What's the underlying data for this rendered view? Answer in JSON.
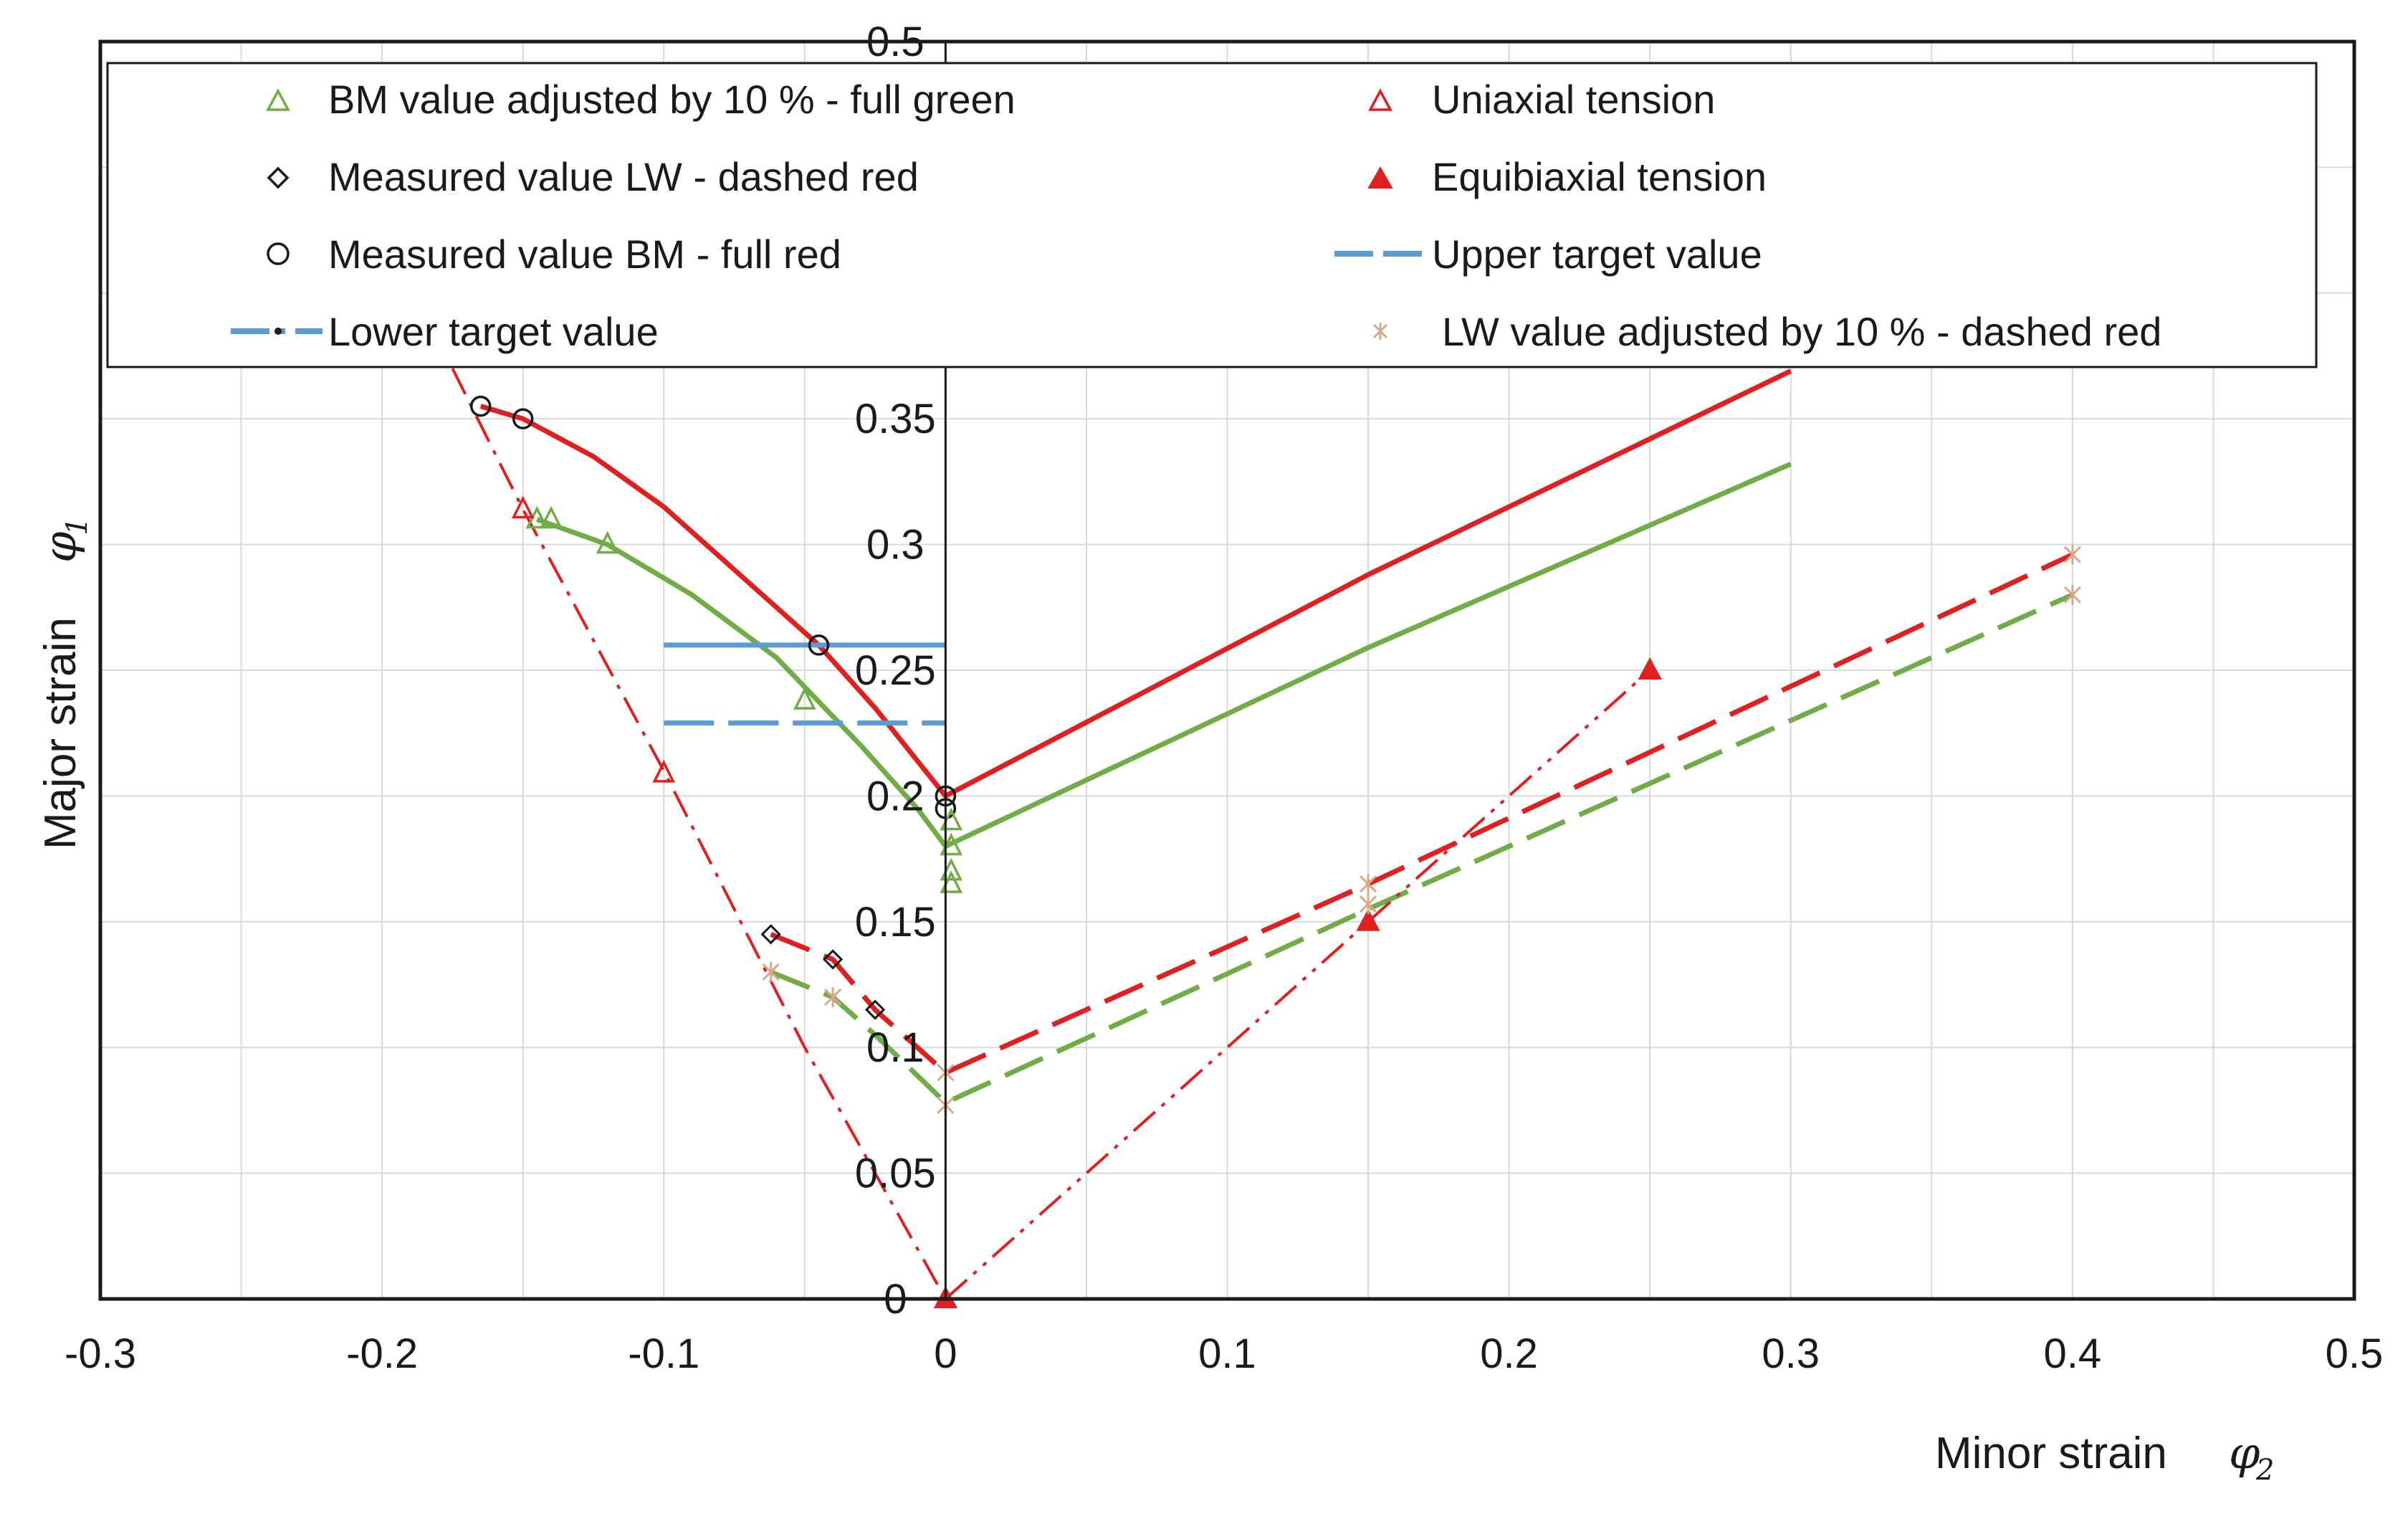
{
  "chart_data": {
    "type": "line",
    "xlabel": "Minor strain",
    "xlabel_symbol": "φ",
    "xlabel_sub": "2",
    "ylabel": "Major strain",
    "ylabel_symbol": "φ",
    "ylabel_sub": "1",
    "xlim": [
      -0.3,
      0.5
    ],
    "ylim": [
      0,
      0.5
    ],
    "x_ticks": [
      "-0.3",
      "-0.2",
      "-0.1",
      "0",
      "0.1",
      "0.2",
      "0.3",
      "0.4",
      "0.5"
    ],
    "y_ticks": [
      "0",
      "0.05",
      "0.1",
      "0.15",
      "0.2",
      "0.25",
      "0.3",
      "0.35",
      "0.5"
    ],
    "grid": true,
    "colors": {
      "red": "#e02020",
      "green": "#70ad47",
      "blue": "#5b9bd5",
      "tan": "#d9a787",
      "dark": "#1a1a1a"
    },
    "legend": [
      {
        "label": "BM value adjusted by 10 %  - full green",
        "marker": "triangle-open-green"
      },
      {
        "label": "Uniaxial tension",
        "marker": "triangle-open-red"
      },
      {
        "label": "Measured value  LW - dashed red",
        "marker": "diamond-open"
      },
      {
        "label": "Equibiaxial tension",
        "marker": "triangle-filled-red"
      },
      {
        "label": "Measured value BM - full red",
        "marker": "circle-open"
      },
      {
        "label": "Upper target value",
        "marker": "line-dashed-blue"
      },
      {
        "label": "Lower target value",
        "marker": "line-dashdot-blue"
      },
      {
        "label": "LW value  adjusted by 10 % - dashed red",
        "marker": "star-tan"
      }
    ],
    "series": [
      {
        "name": "Measured value BM - full red",
        "style": "solid-red",
        "x": [
          -0.165,
          -0.15,
          -0.125,
          -0.1,
          -0.075,
          -0.045,
          -0.025,
          0,
          0.15,
          0.3
        ],
        "y": [
          0.355,
          0.35,
          0.335,
          0.315,
          0.29,
          0.26,
          0.235,
          0.2,
          0.288,
          0.369
        ]
      },
      {
        "name": "BM value adjusted by 10 %  - full green",
        "style": "solid-green",
        "x": [
          -0.145,
          -0.12,
          -0.09,
          -0.06,
          -0.03,
          -0.01,
          0,
          0.15,
          0.3
        ],
        "y": [
          0.31,
          0.3,
          0.28,
          0.255,
          0.22,
          0.195,
          0.18,
          0.259,
          0.332
        ]
      },
      {
        "name": "Measured value  LW - dashed red",
        "style": "dashed-red",
        "x": [
          -0.062,
          -0.04,
          -0.025,
          0,
          0.15,
          0.4
        ],
        "y": [
          0.145,
          0.135,
          0.115,
          0.09,
          0.165,
          0.296
        ]
      },
      {
        "name": "LW value  adjusted by 10 % - dashed red",
        "style": "dashed-green",
        "x": [
          -0.062,
          -0.04,
          -0.025,
          0,
          0.15,
          0.4
        ],
        "y": [
          0.13,
          0.12,
          0.105,
          0.078,
          0.155,
          0.28
        ]
      },
      {
        "name": "Uniaxial tension",
        "style": "dashdot-red",
        "x": [
          -0.175,
          -0.15,
          -0.1,
          -0.05,
          0
        ],
        "y": [
          0.37,
          0.314,
          0.21,
          0.1,
          0
        ]
      },
      {
        "name": "Equibiaxial tension",
        "style": "dashdotdot-red",
        "x": [
          0,
          0.15,
          0.25
        ],
        "y": [
          0,
          0.15,
          0.25
        ]
      },
      {
        "name": "Upper target value",
        "style": "solid-blue",
        "x": [
          -0.1,
          0
        ],
        "y": [
          0.26,
          0.26
        ]
      },
      {
        "name": "Lower target value",
        "style": "dashed-blue",
        "x": [
          -0.1,
          0
        ],
        "y": [
          0.229,
          0.229
        ]
      }
    ],
    "markers": [
      {
        "kind": "circle-open",
        "points": [
          [
            -0.165,
            0.355
          ],
          [
            -0.15,
            0.35
          ],
          [
            -0.045,
            0.26
          ],
          [
            0,
            0.2
          ],
          [
            0,
            0.195
          ]
        ]
      },
      {
        "kind": "triangle-open-green",
        "points": [
          [
            -0.145,
            0.31
          ],
          [
            -0.14,
            0.31
          ],
          [
            -0.12,
            0.3
          ],
          [
            -0.05,
            0.238
          ],
          [
            0.002,
            0.19
          ],
          [
            0.002,
            0.18
          ],
          [
            0.002,
            0.17
          ],
          [
            0.002,
            0.165
          ]
        ]
      },
      {
        "kind": "triangle-open-red",
        "points": [
          [
            -0.15,
            0.314
          ],
          [
            -0.1,
            0.209
          ]
        ]
      },
      {
        "kind": "diamond-open",
        "points": [
          [
            -0.062,
            0.145
          ],
          [
            -0.04,
            0.135
          ],
          [
            -0.025,
            0.115
          ]
        ]
      },
      {
        "kind": "triangle-filled-red",
        "points": [
          [
            0,
            0
          ],
          [
            0.15,
            0.15
          ],
          [
            0.25,
            0.25
          ]
        ]
      },
      {
        "kind": "star-tan",
        "points": [
          [
            0,
            0.09
          ],
          [
            0,
            0.077
          ],
          [
            0.15,
            0.165
          ],
          [
            0.15,
            0.157
          ],
          [
            0.4,
            0.296
          ],
          [
            0.4,
            0.28
          ],
          [
            -0.062,
            0.13
          ],
          [
            -0.04,
            0.12
          ]
        ]
      }
    ]
  }
}
